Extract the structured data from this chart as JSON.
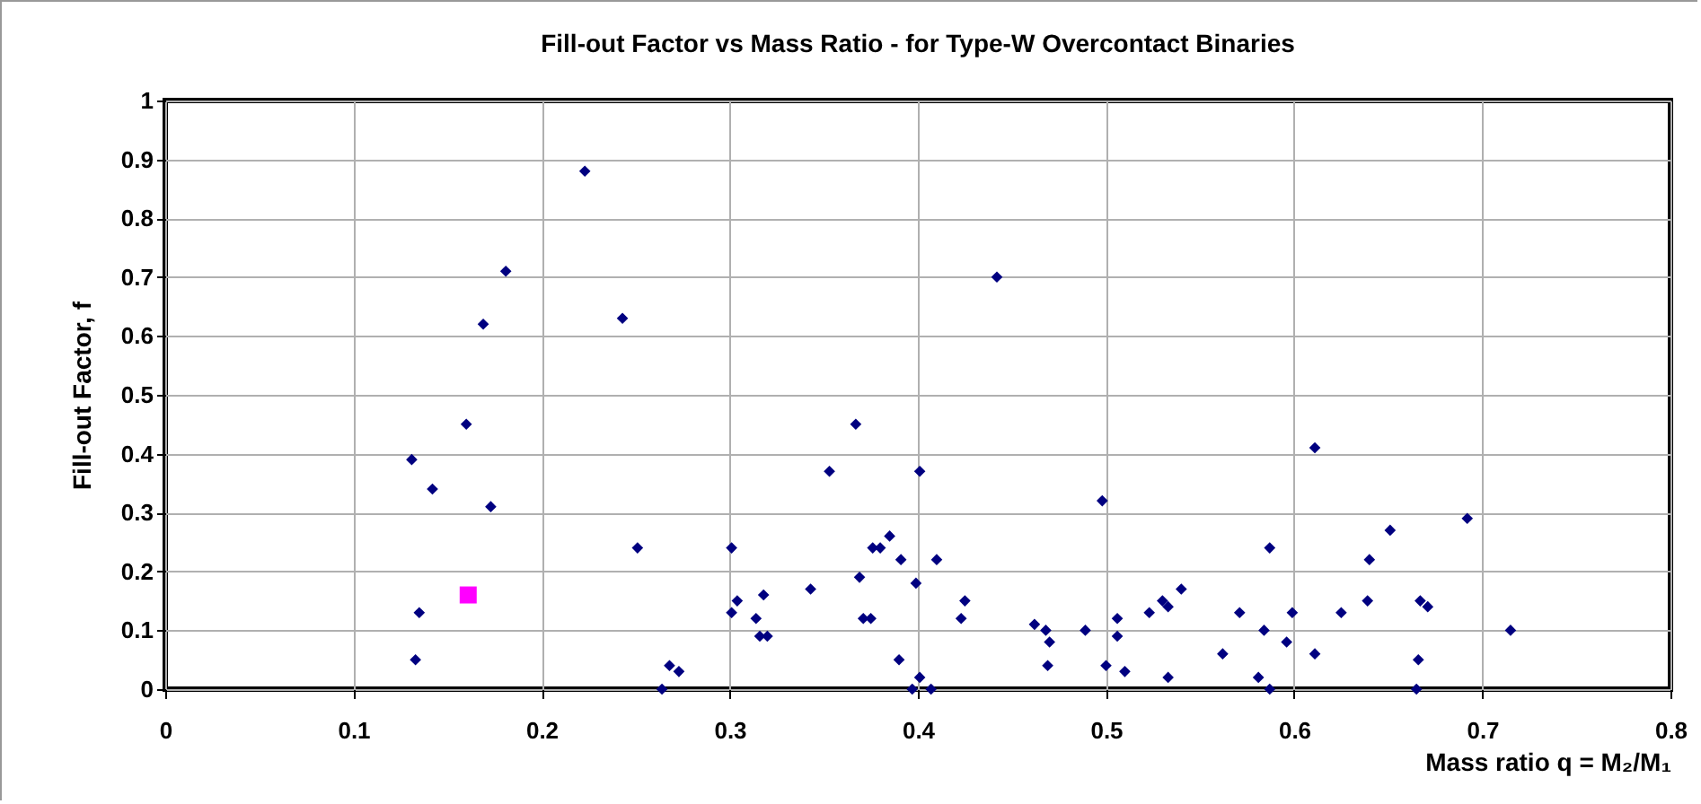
{
  "chart_data": {
    "type": "scatter",
    "title": "Fill-out Factor vs Mass Ratio - for Type-W Overcontact Binaries",
    "xlabel": "Mass ratio  q = M₂/M₁",
    "ylabel": "Fill-out Factor, f",
    "xlim": [
      0,
      0.8
    ],
    "xticks": [
      0,
      0.1,
      0.2,
      0.3,
      0.4,
      0.5,
      0.6,
      0.7,
      0.8
    ],
    "ylim": [
      0,
      1
    ],
    "yticks": [
      0,
      0.1,
      0.2,
      0.3,
      0.4,
      0.5,
      0.6,
      0.7,
      0.8,
      0.9,
      1
    ],
    "grid": true,
    "series": [
      {
        "color": "#000080",
        "marker": "diamond",
        "x": [
          0.223,
          0.181,
          0.169,
          0.243,
          0.16,
          0.131,
          0.142,
          0.173,
          0.251,
          0.135,
          0.133,
          0.268,
          0.264,
          0.442,
          0.367,
          0.353,
          0.401,
          0.498,
          0.301,
          0.385,
          0.376,
          0.38,
          0.391,
          0.41,
          0.369,
          0.399,
          0.343,
          0.318,
          0.304,
          0.425,
          0.301,
          0.314,
          0.371,
          0.375,
          0.423,
          0.316,
          0.32,
          0.462,
          0.468,
          0.47,
          0.489,
          0.506,
          0.506,
          0.469,
          0.39,
          0.5,
          0.51,
          0.273,
          0.401,
          0.397,
          0.407,
          0.523,
          0.611,
          0.692,
          0.651,
          0.587,
          0.64,
          0.54,
          0.53,
          0.533,
          0.639,
          0.667,
          0.671,
          0.571,
          0.599,
          0.625,
          0.584,
          0.715,
          0.596,
          0.562,
          0.611,
          0.666,
          0.581,
          0.533,
          0.587,
          0.665
        ],
        "values": [
          0.88,
          0.71,
          0.62,
          0.63,
          0.45,
          0.39,
          0.34,
          0.31,
          0.24,
          0.13,
          0.05,
          0.04,
          0,
          0.7,
          0.45,
          0.37,
          0.37,
          0.32,
          0.24,
          0.26,
          0.24,
          0.24,
          0.22,
          0.22,
          0.19,
          0.18,
          0.17,
          0.16,
          0.15,
          0.15,
          0.13,
          0.12,
          0.12,
          0.12,
          0.12,
          0.09,
          0.09,
          0.11,
          0.1,
          0.08,
          0.1,
          0.12,
          0.09,
          0.04,
          0.05,
          0.04,
          0.03,
          0.03,
          0.02,
          0,
          0,
          0.13,
          0.41,
          0.29,
          0.27,
          0.24,
          0.22,
          0.17,
          0.15,
          0.14,
          0.15,
          0.15,
          0.14,
          0.13,
          0.13,
          0.13,
          0.1,
          0.1,
          0.08,
          0.06,
          0.06,
          0.05,
          0.02,
          0.02,
          0,
          0
        ]
      },
      {
        "color": "#ff00ff",
        "marker": "square",
        "x": [
          0.161
        ],
        "values": [
          0.16
        ]
      }
    ]
  }
}
